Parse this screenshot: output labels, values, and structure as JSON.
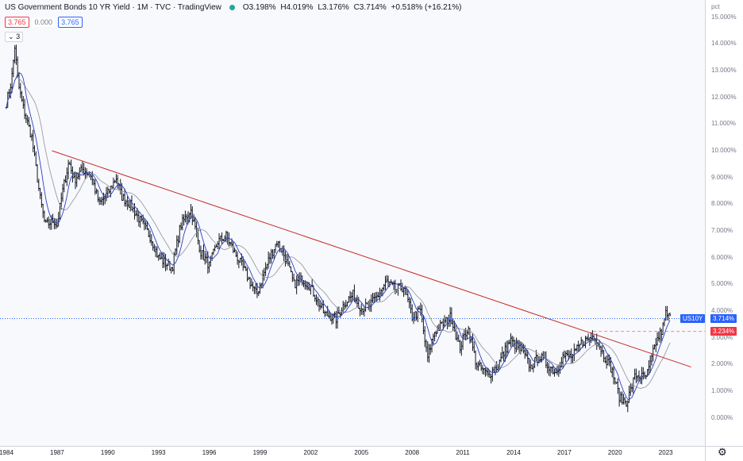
{
  "header": {
    "title": "US Government Bonds 10 YR Yield · 1M · TVC · TradingView",
    "ohlc": {
      "o": "O3.198%",
      "h": "H4.019%",
      "l": "L3.176%",
      "c": "C3.714%",
      "chg": "+0.518% (+16.21%)"
    },
    "bid": "3.765",
    "spread": "0.000",
    "ask": "3.765",
    "indicator_count": "3"
  },
  "axis": {
    "unit": "pct",
    "y_ticks": [
      "15.000%",
      "14.000%",
      "13.000%",
      "12.000%",
      "11.000%",
      "10.000%",
      "9.000%",
      "8.000%",
      "7.000%",
      "6.000%",
      "5.000%",
      "4.000%",
      "3.000%",
      "2.000%",
      "1.000%",
      "0.000%"
    ],
    "x_ticks": [
      "1984",
      "1987",
      "1990",
      "1993",
      "1996",
      "1999",
      "2002",
      "2005",
      "2008",
      "2011",
      "2014",
      "2017",
      "2020",
      "2023"
    ]
  },
  "tags": {
    "symbol": "US10Y",
    "last": "3.714%",
    "level": "3.234%"
  },
  "colors": {
    "up": "#131722",
    "accent_blue": "#2962ff",
    "trend_red": "#c62828",
    "level_red": "#f23645",
    "ma_blue": "#2a3fbf",
    "ma_gray": "#9a9ca5"
  },
  "chart_data": {
    "type": "line",
    "title": "US Government Bonds 10 YR Yield",
    "ylabel": "pct",
    "ylim": [
      0,
      15.5
    ],
    "xlim": [
      1984.0,
      2024.5
    ],
    "series": [
      {
        "name": "US10Y",
        "x": [
          1984.0,
          1984.3,
          1984.5,
          1984.7,
          1985.0,
          1985.5,
          1986.0,
          1986.3,
          1986.8,
          1987.0,
          1987.3,
          1987.7,
          1988.0,
          1988.5,
          1989.0,
          1989.5,
          1990.0,
          1990.5,
          1990.8,
          1991.3,
          1992.0,
          1992.5,
          1993.0,
          1993.8,
          1994.3,
          1994.9,
          1995.5,
          1996.0,
          1996.5,
          1997.0,
          1997.5,
          1998.0,
          1998.8,
          1999.5,
          2000.0,
          2000.5,
          2001.0,
          2001.5,
          2002.0,
          2002.8,
          2003.5,
          2004.0,
          2004.5,
          2005.0,
          2005.5,
          2006.0,
          2006.5,
          2007.0,
          2007.5,
          2008.0,
          2008.5,
          2008.9,
          2009.3,
          2009.8,
          2010.3,
          2010.8,
          2011.3,
          2011.8,
          2012.5,
          2013.0,
          2013.8,
          2014.5,
          2015.0,
          2015.5,
          2016.5,
          2016.9,
          2017.5,
          2018.0,
          2018.8,
          2019.3,
          2019.8,
          2020.3,
          2020.7,
          2021.2,
          2021.8,
          2022.0,
          2022.4,
          2022.8,
          2023.0,
          2023.3
        ],
        "y": [
          11.8,
          12.6,
          13.9,
          12.5,
          11.6,
          10.5,
          8.2,
          7.2,
          7.4,
          7.2,
          8.4,
          9.6,
          8.9,
          9.3,
          9.1,
          8.0,
          8.4,
          9.0,
          8.3,
          8.0,
          7.3,
          6.8,
          6.0,
          5.6,
          7.2,
          7.8,
          6.2,
          5.7,
          6.6,
          6.8,
          6.2,
          5.6,
          4.6,
          5.9,
          6.6,
          6.0,
          5.0,
          5.2,
          4.9,
          3.9,
          3.7,
          4.3,
          4.6,
          4.1,
          4.2,
          4.6,
          5.1,
          4.8,
          4.9,
          3.8,
          4.0,
          2.2,
          3.2,
          3.5,
          3.8,
          2.6,
          3.4,
          2.0,
          1.6,
          1.9,
          2.9,
          2.5,
          1.9,
          2.3,
          1.7,
          2.3,
          2.3,
          2.8,
          3.1,
          2.4,
          1.8,
          0.7,
          0.6,
          1.6,
          1.5,
          1.8,
          2.8,
          3.3,
          3.9,
          3.7
        ]
      }
    ],
    "trendline": {
      "x": [
        1986.7,
        2024.5
      ],
      "y": [
        10.0,
        1.9
      ]
    },
    "hline": {
      "y": 3.234,
      "x_start": 2018.7
    },
    "last_price_line": {
      "y": 3.714
    }
  }
}
